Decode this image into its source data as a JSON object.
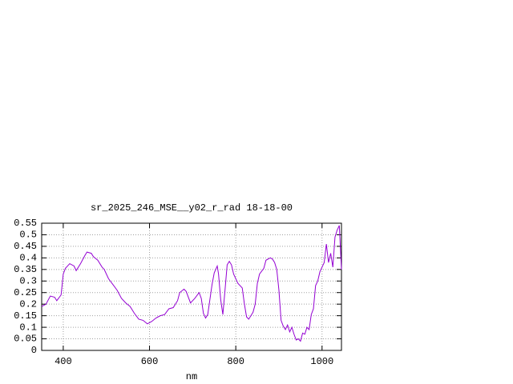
{
  "chart_data": {
    "type": "line",
    "title": "sr_2025_246_MSE__y02_r_rad 18-18-00",
    "x_label": "nm",
    "x": [
      350,
      360,
      370,
      380,
      385,
      395,
      400,
      405,
      415,
      425,
      430,
      440,
      450,
      455,
      465,
      470,
      480,
      490,
      495,
      505,
      515,
      525,
      535,
      545,
      555,
      565,
      575,
      585,
      595,
      605,
      615,
      625,
      635,
      645,
      655,
      665,
      670,
      680,
      685,
      695,
      705,
      715,
      720,
      725,
      730,
      735,
      745,
      750,
      757,
      760,
      765,
      770,
      775,
      780,
      785,
      790,
      795,
      805,
      815,
      820,
      825,
      830,
      840,
      845,
      850,
      855,
      865,
      870,
      880,
      885,
      890,
      895,
      900,
      905,
      910,
      915,
      920,
      925,
      930,
      935,
      940,
      945,
      950,
      955,
      960,
      965,
      970,
      975,
      980,
      985,
      990,
      995,
      1000,
      1005,
      1010,
      1015,
      1020,
      1025,
      1030,
      1035,
      1040,
      1045
    ],
    "series": [
      {
        "color": "#9400d3",
        "values": [
          0.19,
          0.2,
          0.235,
          0.23,
          0.215,
          0.24,
          0.33,
          0.355,
          0.375,
          0.365,
          0.345,
          0.375,
          0.41,
          0.425,
          0.42,
          0.405,
          0.39,
          0.36,
          0.35,
          0.31,
          0.285,
          0.26,
          0.225,
          0.205,
          0.19,
          0.16,
          0.135,
          0.13,
          0.115,
          0.125,
          0.14,
          0.15,
          0.155,
          0.18,
          0.185,
          0.215,
          0.25,
          0.265,
          0.255,
          0.205,
          0.225,
          0.25,
          0.225,
          0.16,
          0.14,
          0.155,
          0.285,
          0.335,
          0.365,
          0.33,
          0.22,
          0.155,
          0.26,
          0.37,
          0.385,
          0.37,
          0.33,
          0.29,
          0.27,
          0.2,
          0.145,
          0.135,
          0.165,
          0.2,
          0.29,
          0.33,
          0.355,
          0.39,
          0.4,
          0.395,
          0.38,
          0.35,
          0.26,
          0.13,
          0.105,
          0.09,
          0.11,
          0.08,
          0.1,
          0.07,
          0.045,
          0.05,
          0.04,
          0.075,
          0.07,
          0.1,
          0.09,
          0.155,
          0.18,
          0.28,
          0.3,
          0.34,
          0.36,
          0.38,
          0.46,
          0.38,
          0.42,
          0.36,
          0.49,
          0.52,
          0.54,
          0.35
        ]
      }
    ],
    "xlim": [
      350,
      1045
    ],
    "xticks": [
      400,
      600,
      800,
      1000
    ],
    "ylim": [
      0,
      0.55
    ],
    "yticks": [
      0,
      0.05,
      0.1,
      0.15,
      0.2,
      0.25,
      0.3,
      0.35,
      0.4,
      0.45,
      0.5,
      0.55
    ],
    "grid": true
  }
}
